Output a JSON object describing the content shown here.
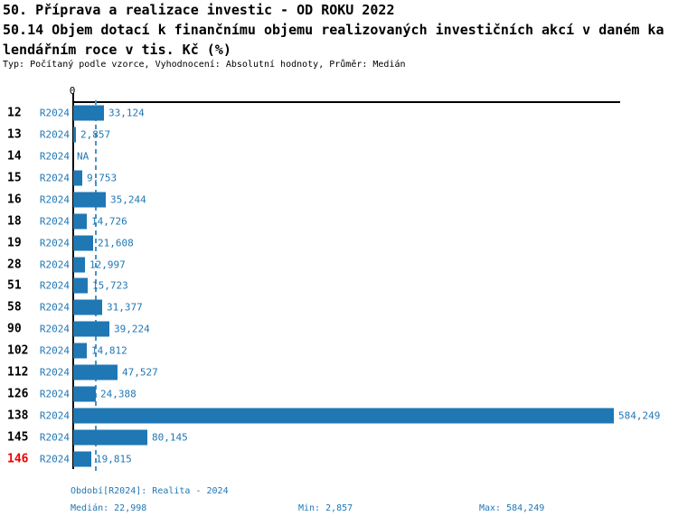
{
  "title": {
    "line1": "50. Příprava a realizace investic - OD ROKU 2022",
    "line2": "50.14 Objem dotací k finančnímu objemu realizovaných investičních akcí v daném ka",
    "line3": "lendářním roce v tis. Kč (%)",
    "subtitle": "Typ: Počítaný podle vzorce, Vyhodnocení: Absolutní hodnoty, Průměr: Medián"
  },
  "chart_data": {
    "type": "bar",
    "orientation": "horizontal",
    "axis_zero_label": "0",
    "series_label": "R2024",
    "categories": [
      "12",
      "13",
      "14",
      "15",
      "16",
      "18",
      "19",
      "28",
      "51",
      "58",
      "90",
      "102",
      "112",
      "126",
      "138",
      "145",
      "146"
    ],
    "values": [
      33124,
      2857,
      null,
      9753,
      35244,
      14726,
      21608,
      12997,
      15723,
      31377,
      39224,
      14812,
      47527,
      24388,
      584249,
      80145,
      19815
    ],
    "value_labels": [
      "33,124",
      "2,857",
      "NA",
      "9,753",
      "35,244",
      "14,726",
      "21,608",
      "12,997",
      "15,723",
      "31,377",
      "39,224",
      "14,812",
      "47,527",
      "24,388",
      "584,249",
      "80,145",
      "19,815"
    ],
    "median_value": 22998,
    "xlim": [
      0,
      584249
    ],
    "highlighted_category": "146",
    "grid": "median-reference-line-only",
    "legend_position": "none",
    "bar_color": "#1F77B4",
    "median_line_color": "#4793C8",
    "highlight_color": "#EE0000"
  },
  "footer": {
    "period": "Období[R2024]: Realita - 2024",
    "median": "Medián: 22,998",
    "min": "Min: 2,857",
    "max": "Max: 584,249"
  }
}
